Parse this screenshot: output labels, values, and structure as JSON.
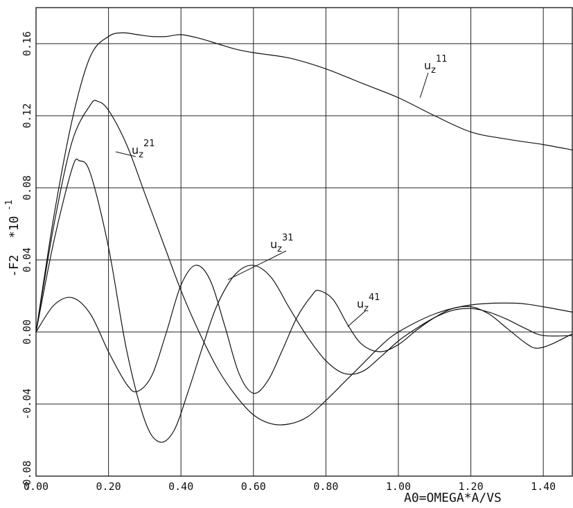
{
  "chart_data": {
    "type": "line",
    "xlabel": "A0=OMEGA*A/VS",
    "ylabel": "-F2",
    "y_multiplier": "*10",
    "y_multiplier_exp": "-1",
    "xlim": [
      0.0,
      1.48
    ],
    "ylim": [
      -0.08,
      0.18
    ],
    "x_ticks": [
      0.0,
      0.2,
      0.4,
      0.6,
      0.8,
      1.0,
      1.2,
      1.4
    ],
    "x_tick_labels": [
      "0.00",
      "0.20",
      "0.40",
      "0.60",
      "0.80",
      "1.00",
      "1.20",
      "1.40"
    ],
    "y_ticks": [
      -0.08,
      -0.04,
      0.0,
      0.04,
      0.08,
      0.12,
      0.16
    ],
    "y_tick_labels": [
      "-0.08",
      "-0.04",
      "0.00",
      "0.04",
      "0.08",
      "0.12",
      "0.16"
    ],
    "grid": true,
    "series": [
      {
        "name": "u_z^11",
        "label_base": "u",
        "label_sub": "z",
        "label_sup": "11",
        "points": [
          [
            0.0,
            0.0
          ],
          [
            0.05,
            0.065
          ],
          [
            0.1,
            0.118
          ],
          [
            0.15,
            0.153
          ],
          [
            0.2,
            0.164
          ],
          [
            0.24,
            0.166
          ],
          [
            0.28,
            0.165
          ],
          [
            0.32,
            0.164
          ],
          [
            0.36,
            0.164
          ],
          [
            0.4,
            0.165
          ],
          [
            0.45,
            0.163
          ],
          [
            0.5,
            0.16
          ],
          [
            0.55,
            0.157
          ],
          [
            0.6,
            0.155
          ],
          [
            0.7,
            0.152
          ],
          [
            0.8,
            0.146
          ],
          [
            0.9,
            0.138
          ],
          [
            1.0,
            0.13
          ],
          [
            1.1,
            0.12
          ],
          [
            1.2,
            0.111
          ],
          [
            1.3,
            0.107
          ],
          [
            1.4,
            0.104
          ],
          [
            1.48,
            0.101
          ]
        ]
      },
      {
        "name": "u_z^21",
        "label_base": "u",
        "label_sub": "z",
        "label_sup": "21",
        "points": [
          [
            0.0,
            0.0
          ],
          [
            0.05,
            0.06
          ],
          [
            0.1,
            0.106
          ],
          [
            0.15,
            0.126
          ],
          [
            0.17,
            0.128
          ],
          [
            0.2,
            0.123
          ],
          [
            0.25,
            0.104
          ],
          [
            0.3,
            0.077
          ],
          [
            0.35,
            0.05
          ],
          [
            0.4,
            0.023
          ],
          [
            0.45,
            0.0
          ],
          [
            0.5,
            -0.02
          ],
          [
            0.55,
            -0.035
          ],
          [
            0.6,
            -0.046
          ],
          [
            0.65,
            -0.051
          ],
          [
            0.7,
            -0.051
          ],
          [
            0.75,
            -0.047
          ],
          [
            0.8,
            -0.038
          ],
          [
            0.85,
            -0.028
          ],
          [
            0.9,
            -0.018
          ],
          [
            0.95,
            -0.008
          ],
          [
            1.0,
            0.0
          ],
          [
            1.1,
            0.01
          ],
          [
            1.2,
            0.015
          ],
          [
            1.32,
            0.016
          ],
          [
            1.4,
            0.014
          ],
          [
            1.48,
            0.011
          ]
        ]
      },
      {
        "name": "u_z^31",
        "label_base": "u",
        "label_sub": "z",
        "label_sup": "31",
        "points": [
          [
            0.0,
            0.0
          ],
          [
            0.05,
            0.051
          ],
          [
            0.1,
            0.091
          ],
          [
            0.12,
            0.095
          ],
          [
            0.15,
            0.088
          ],
          [
            0.2,
            0.047
          ],
          [
            0.25,
            -0.01
          ],
          [
            0.3,
            -0.049
          ],
          [
            0.34,
            -0.061
          ],
          [
            0.38,
            -0.055
          ],
          [
            0.42,
            -0.033
          ],
          [
            0.46,
            -0.008
          ],
          [
            0.5,
            0.015
          ],
          [
            0.55,
            0.032
          ],
          [
            0.6,
            0.037
          ],
          [
            0.65,
            0.03
          ],
          [
            0.7,
            0.013
          ],
          [
            0.75,
            -0.003
          ],
          [
            0.8,
            -0.016
          ],
          [
            0.85,
            -0.023
          ],
          [
            0.9,
            -0.022
          ],
          [
            0.95,
            -0.014
          ],
          [
            1.0,
            -0.005
          ],
          [
            1.05,
            0.002
          ],
          [
            1.1,
            0.008
          ],
          [
            1.15,
            0.012
          ],
          [
            1.2,
            0.013
          ],
          [
            1.25,
            0.011
          ],
          [
            1.3,
            0.007
          ],
          [
            1.35,
            0.002
          ],
          [
            1.4,
            -0.002
          ],
          [
            1.48,
            -0.002
          ]
        ]
      },
      {
        "name": "u_z^41",
        "label_base": "u",
        "label_sub": "z",
        "label_sup": "41",
        "points": [
          [
            0.0,
            0.0
          ],
          [
            0.05,
            0.015
          ],
          [
            0.1,
            0.019
          ],
          [
            0.15,
            0.01
          ],
          [
            0.2,
            -0.011
          ],
          [
            0.25,
            -0.029
          ],
          [
            0.28,
            -0.033
          ],
          [
            0.32,
            -0.024
          ],
          [
            0.36,
            0.0
          ],
          [
            0.4,
            0.026
          ],
          [
            0.44,
            0.037
          ],
          [
            0.48,
            0.029
          ],
          [
            0.52,
            0.004
          ],
          [
            0.56,
            -0.023
          ],
          [
            0.6,
            -0.034
          ],
          [
            0.64,
            -0.027
          ],
          [
            0.68,
            -0.01
          ],
          [
            0.72,
            0.008
          ],
          [
            0.76,
            0.02
          ],
          [
            0.78,
            0.023
          ],
          [
            0.82,
            0.018
          ],
          [
            0.86,
            0.004
          ],
          [
            0.9,
            -0.007
          ],
          [
            0.95,
            -0.011
          ],
          [
            1.0,
            -0.007
          ],
          [
            1.05,
            0.001
          ],
          [
            1.1,
            0.008
          ],
          [
            1.15,
            0.013
          ],
          [
            1.2,
            0.014
          ],
          [
            1.25,
            0.01
          ],
          [
            1.3,
            0.002
          ],
          [
            1.35,
            -0.006
          ],
          [
            1.38,
            -0.009
          ],
          [
            1.42,
            -0.007
          ],
          [
            1.48,
            -0.001
          ]
        ]
      }
    ]
  }
}
